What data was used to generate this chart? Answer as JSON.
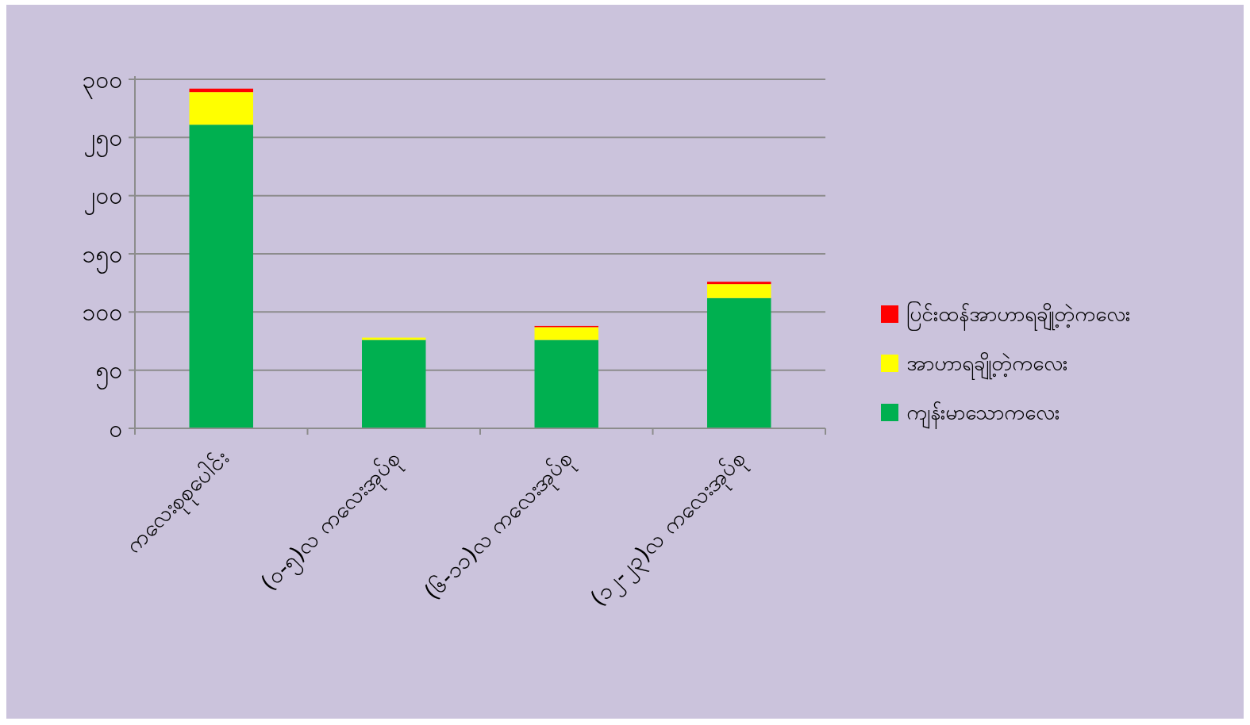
{
  "chart_data": {
    "type": "bar",
    "stacked": true,
    "categories": [
      "ကလေးစုစုပေါင်း",
      "(၀-၅)လ ကလေးအုပ်စု",
      "(၆-၁၁)လ ကလေးအုပ်စု",
      "(၁၂-၂၃)လ ကလေးအုပ်စု"
    ],
    "series": [
      {
        "name": "ကျန်းမာသောကလေး",
        "color": "#00b050",
        "values": [
          261,
          76,
          76,
          112
        ]
      },
      {
        "name": "အာဟာရချို့တဲ့ကလေး",
        "color": "#ffff00",
        "values": [
          28,
          2,
          11,
          12
        ]
      },
      {
        "name": "ပြင်းထန်အာဟာရချို့တဲ့ကလေး",
        "color": "#ff0000",
        "values": [
          3,
          0,
          1,
          2
        ]
      }
    ],
    "ylim": [
      0,
      300
    ],
    "yticks": [
      {
        "value": 0,
        "label": "၀"
      },
      {
        "value": 50,
        "label": "၅၀"
      },
      {
        "value": 100,
        "label": "၁၀၀"
      },
      {
        "value": 150,
        "label": "၁၅၀"
      },
      {
        "value": 200,
        "label": "၂၀၀"
      },
      {
        "value": 250,
        "label": "၂၅၀"
      },
      {
        "value": 300,
        "label": "၃၀၀"
      }
    ],
    "grid": "y",
    "legend": "right"
  }
}
